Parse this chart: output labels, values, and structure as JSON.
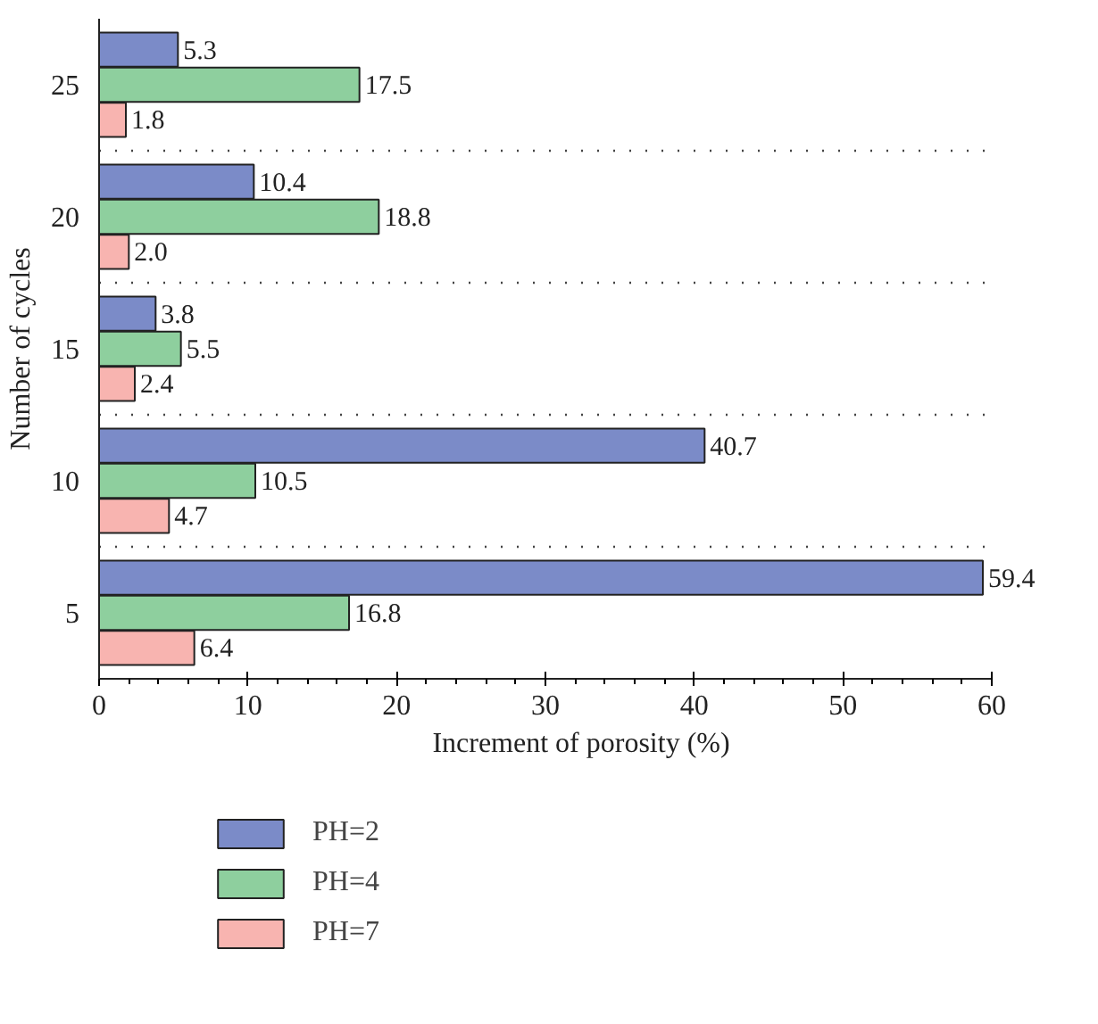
{
  "chart_data": {
    "type": "bar",
    "orientation": "horizontal",
    "xlabel": "Increment of porosity (%)",
    "ylabel": "Number of cycles",
    "categories": [
      "25",
      "20",
      "15",
      "10",
      "5"
    ],
    "series": [
      {
        "name": "PH=2",
        "color": "#7b8bc8",
        "values": [
          5.3,
          10.4,
          3.8,
          40.7,
          59.4
        ],
        "value_labels": [
          "5.3",
          "10.4",
          "3.8",
          "40.7",
          "59.4"
        ]
      },
      {
        "name": "PH=4",
        "color": "#8ecf9e",
        "values": [
          17.5,
          18.8,
          5.5,
          10.5,
          16.8
        ],
        "value_labels": [
          "17.5",
          "18.8",
          "5.5",
          "10.5",
          "16.8"
        ]
      },
      {
        "name": "PH=7",
        "color": "#f8b4b0",
        "values": [
          1.8,
          2.0,
          2.4,
          4.7,
          6.4
        ],
        "value_labels": [
          "1.8",
          "2.0",
          "2.4",
          "4.7",
          "6.4"
        ]
      }
    ],
    "xlim": [
      0,
      60
    ],
    "xticks": [
      0,
      10,
      20,
      30,
      40,
      50,
      60
    ],
    "grid": "y",
    "legend": "bottom"
  }
}
